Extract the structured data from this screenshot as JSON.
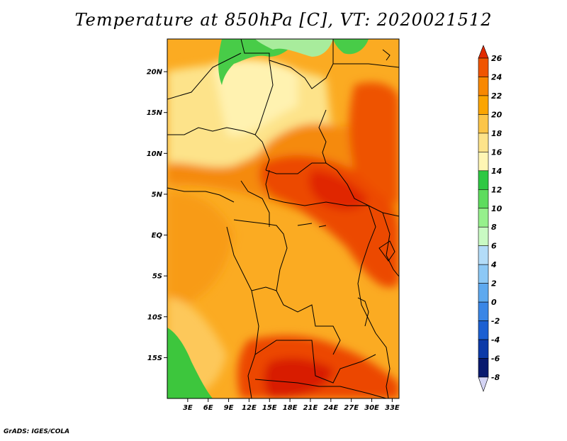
{
  "title": "Temperature at 850hPa [C], VT: 2020021512",
  "footer": "GrADS: IGES/COLA",
  "map": {
    "lat_range": [
      -20,
      24
    ],
    "lon_range": [
      0,
      34
    ],
    "lat_labels": [
      {
        "lat": 20,
        "text": "20N"
      },
      {
        "lat": 15,
        "text": "15N"
      },
      {
        "lat": 10,
        "text": "10N"
      },
      {
        "lat": 5,
        "text": "5N"
      },
      {
        "lat": 0,
        "text": "EQ"
      },
      {
        "lat": -5,
        "text": "5S"
      },
      {
        "lat": -10,
        "text": "10S"
      },
      {
        "lat": -15,
        "text": "15S"
      }
    ],
    "lon_labels": [
      {
        "lon": 3,
        "text": "3E"
      },
      {
        "lon": 6,
        "text": "6E"
      },
      {
        "lon": 9,
        "text": "9E"
      },
      {
        "lon": 12,
        "text": "12E"
      },
      {
        "lon": 15,
        "text": "15E"
      },
      {
        "lon": 18,
        "text": "18E"
      },
      {
        "lon": 21,
        "text": "21E"
      },
      {
        "lon": 24,
        "text": "24E"
      },
      {
        "lon": 27,
        "text": "27E"
      },
      {
        "lon": 30,
        "text": "30E"
      },
      {
        "lon": 33,
        "text": "33E"
      }
    ]
  },
  "colorbar": {
    "levels": [
      26,
      24,
      22,
      20,
      18,
      16,
      14,
      12,
      10,
      8,
      6,
      4,
      2,
      0,
      -2,
      -4,
      -6,
      -8
    ],
    "labels": [
      "26",
      "24",
      "22",
      "20",
      "18",
      "16",
      "14",
      "12",
      "10",
      "8",
      "6",
      "4",
      "2",
      "0",
      "-2",
      "-4",
      "-6",
      "-8"
    ],
    "colors": [
      "#e12a00",
      "#f05500",
      "#f88800",
      "#fba500",
      "#fcc548",
      "#fde38a",
      "#fff6b4",
      "#2ec843",
      "#5edc5e",
      "#96f08c",
      "#c9fac3",
      "#b3dcf8",
      "#8cc8f5",
      "#5ea9ef",
      "#3a86e6",
      "#1c60d2",
      "#0c3aa8",
      "#08196e",
      "#d4d4f4"
    ]
  },
  "colors": {
    "very_hot": "#dd1f00",
    "hot": "#ee4d00",
    "warm": "#f5860a",
    "mild": "#fba61a",
    "cool": "#fdc64a",
    "pale": "#fde591",
    "green": "#3cc83c",
    "light_green": "#a5ee9b"
  }
}
